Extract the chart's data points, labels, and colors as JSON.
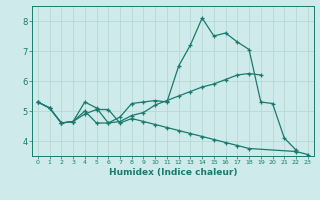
{
  "xlabel": "Humidex (Indice chaleur)",
  "bg_color": "#ceeaea",
  "line_color": "#1a7a6e",
  "grid_color": "#b8d8d8",
  "xlim": [
    -0.5,
    23.5
  ],
  "ylim": [
    3.5,
    8.5
  ],
  "yticks": [
    4,
    5,
    6,
    7,
    8
  ],
  "xticks": [
    0,
    1,
    2,
    3,
    4,
    5,
    6,
    7,
    8,
    9,
    10,
    11,
    12,
    13,
    14,
    15,
    16,
    17,
    18,
    19,
    20,
    21,
    22,
    23
  ],
  "lines": [
    {
      "x": [
        0,
        1,
        2,
        3,
        4,
        5,
        6,
        7,
        8,
        9,
        10,
        11,
        12,
        13,
        14,
        15,
        16,
        17,
        18,
        19,
        20,
        21,
        22
      ],
      "y": [
        5.3,
        5.1,
        4.6,
        4.65,
        5.3,
        5.1,
        4.6,
        4.8,
        5.25,
        5.3,
        5.35,
        5.3,
        6.5,
        7.2,
        8.1,
        7.5,
        7.6,
        7.3,
        7.05,
        5.3,
        5.25,
        4.1,
        3.7
      ]
    },
    {
      "x": [
        0,
        1,
        2,
        3,
        4,
        5,
        6,
        7,
        8,
        9,
        10,
        11,
        12,
        13,
        14,
        15,
        16,
        17,
        18,
        19
      ],
      "y": [
        5.3,
        5.1,
        4.6,
        4.65,
        5.0,
        4.6,
        4.6,
        4.65,
        4.85,
        4.95,
        5.2,
        5.35,
        5.5,
        5.65,
        5.8,
        5.9,
        6.05,
        6.2,
        6.25,
        6.2
      ]
    },
    {
      "x": [
        0,
        1,
        2,
        3,
        4,
        5,
        6,
        7,
        8,
        9,
        10,
        11,
        12,
        13,
        14,
        15,
        16,
        17,
        18,
        22,
        23
      ],
      "y": [
        5.3,
        5.1,
        4.6,
        4.65,
        4.9,
        5.05,
        5.05,
        4.6,
        4.75,
        4.65,
        4.55,
        4.45,
        4.35,
        4.25,
        4.15,
        4.05,
        3.95,
        3.85,
        3.75,
        3.65,
        3.55
      ]
    }
  ]
}
